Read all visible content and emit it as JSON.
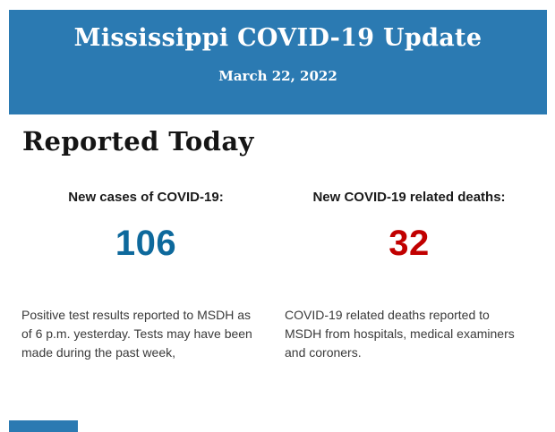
{
  "colors": {
    "banner_blue": "#2B7AB2",
    "cases_blue": "#0E699C",
    "deaths_red": "#C10000"
  },
  "header": {
    "title": "Mississippi COVID-19 Update",
    "date": "March 22, 2022"
  },
  "section": {
    "heading": "Reported Today"
  },
  "stats": [
    {
      "label": "New cases of COVID-19:",
      "value": "106",
      "value_color": "#0E699C",
      "description": "Positive test results reported to MSDH as\nof 6 p.m. yesterday. Tests may have been\nmade during the past week,"
    },
    {
      "label": "New COVID-19 related deaths:",
      "value": "32",
      "value_color": "#C10000",
      "description": "COVID-19 related deaths reported to\nMSDH from hospitals, medical examiners\nand coroners."
    }
  ]
}
